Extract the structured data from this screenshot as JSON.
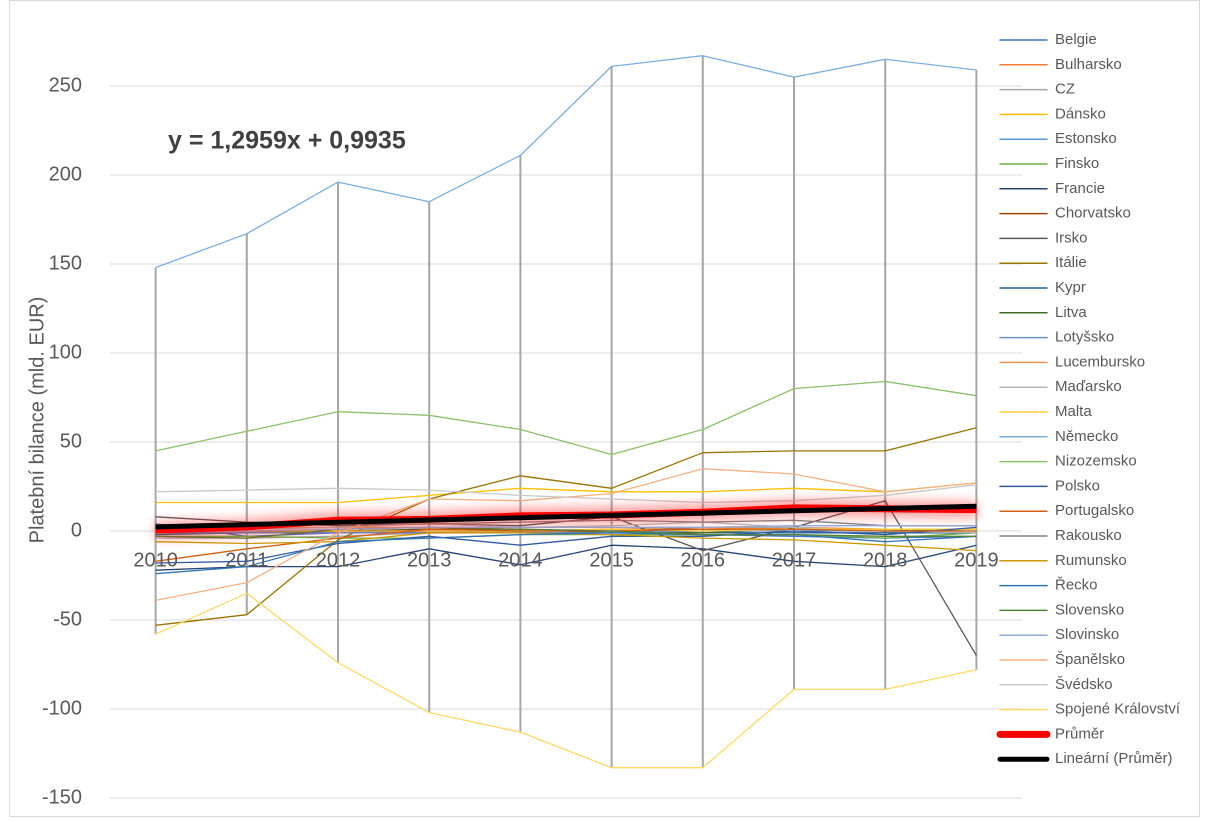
{
  "chart_data": {
    "type": "line",
    "y_label": "Platební bilance (mld. EUR)",
    "annotation": "y = 1,2959x + 0,9935",
    "categories": [
      "2010",
      "2011",
      "2012",
      "2013",
      "2014",
      "2015",
      "2016",
      "2017",
      "2018",
      "2019"
    ],
    "ylim": [
      -150,
      270
    ],
    "yticks": [
      -150,
      -100,
      -50,
      0,
      50,
      100,
      150,
      200,
      250
    ],
    "grid": true,
    "high_low_lines": true,
    "legend": "right",
    "series": [
      {
        "name": "Belgie",
        "color": "#4472c4",
        "values": [
          4,
          -3,
          -1,
          -1,
          -1,
          -1,
          -2,
          -3,
          -4,
          -3
        ]
      },
      {
        "name": "Bulharsko",
        "color": "#ed7d31",
        "values": [
          -1,
          0,
          -1,
          0,
          0,
          0,
          1,
          2,
          1,
          1
        ]
      },
      {
        "name": "CZ",
        "color": "#a5a5a5",
        "values": [
          -4,
          -4,
          -3,
          -1,
          0,
          0,
          2,
          2,
          0,
          -1
        ]
      },
      {
        "name": "Dánsko",
        "color": "#ffc000",
        "values": [
          16,
          16,
          16,
          20,
          24,
          22,
          22,
          24,
          22,
          27
        ]
      },
      {
        "name": "Estonsko",
        "color": "#5b9bd5",
        "values": [
          0,
          0,
          -1,
          0,
          0,
          0,
          0,
          1,
          1,
          1
        ]
      },
      {
        "name": "Finsko",
        "color": "#70ad47",
        "values": [
          -3,
          -3,
          -4,
          -4,
          -2,
          -2,
          -2,
          -2,
          -4,
          -1
        ]
      },
      {
        "name": "Francie",
        "color": "#264478",
        "values": [
          -22,
          -20,
          -20,
          -10,
          -19,
          -8,
          -10,
          -17,
          -20,
          -8
        ]
      },
      {
        "name": "Chorvatsko",
        "color": "#9e480e",
        "values": [
          -1,
          -1,
          0,
          0,
          0,
          1,
          1,
          1,
          1,
          1
        ]
      },
      {
        "name": "Irsko",
        "color": "#595959",
        "values": [
          8,
          5,
          3,
          4,
          3,
          8,
          -11,
          2,
          17,
          -70
        ]
      },
      {
        "name": "Itálie",
        "color": "#997300",
        "values": [
          -53,
          -47,
          -5,
          18,
          31,
          24,
          44,
          45,
          45,
          58
        ]
      },
      {
        "name": "Kypr",
        "color": "#255e91",
        "values": [
          -2,
          -1,
          -1,
          -1,
          -1,
          -1,
          -1,
          -1,
          -1,
          -1
        ]
      },
      {
        "name": "Litva",
        "color": "#43682b",
        "values": [
          -1,
          -1,
          0,
          1,
          1,
          -1,
          -1,
          1,
          0,
          1
        ]
      },
      {
        "name": "Lotyšsko",
        "color": "#698ed0",
        "values": [
          -1,
          -1,
          -1,
          -1,
          -1,
          -1,
          0,
          0,
          0,
          0
        ]
      },
      {
        "name": "Lucembursko",
        "color": "#f1975a",
        "values": [
          2,
          2,
          2,
          2,
          2,
          2,
          2,
          1,
          1,
          1
        ]
      },
      {
        "name": "Maďarsko",
        "color": "#b7b7b7",
        "values": [
          0,
          1,
          2,
          4,
          2,
          3,
          5,
          2,
          0,
          -1
        ]
      },
      {
        "name": "Malta",
        "color": "#ffcd33",
        "values": [
          0,
          0,
          0,
          0,
          0,
          1,
          0,
          1,
          1,
          1
        ]
      },
      {
        "name": "Německo",
        "color": "#7cafdd",
        "values": [
          148,
          167,
          196,
          185,
          211,
          261,
          267,
          255,
          265,
          259
        ]
      },
      {
        "name": "Nizozemsko",
        "color": "#8cc168",
        "values": [
          45,
          56,
          67,
          65,
          57,
          43,
          57,
          80,
          84,
          76
        ]
      },
      {
        "name": "Polsko",
        "color": "#335aa1",
        "values": [
          -18,
          -17,
          -7,
          -3,
          -8,
          -3,
          -3,
          0,
          -2,
          2
        ]
      },
      {
        "name": "Portugalsko",
        "color": "#d26012",
        "values": [
          -17,
          -10,
          -4,
          1,
          0,
          0,
          1,
          1,
          0,
          0
        ]
      },
      {
        "name": "Rakousko",
        "color": "#848484",
        "values": [
          3,
          2,
          4,
          4,
          5,
          6,
          5,
          6,
          3,
          3
        ]
      },
      {
        "name": "Rumunsko",
        "color": "#cc9a00",
        "values": [
          -6,
          -7,
          -6,
          -1,
          -1,
          -2,
          -4,
          -5,
          -8,
          -11
        ]
      },
      {
        "name": "Řecko",
        "color": "#2e75b6",
        "values": [
          -24,
          -20,
          -6,
          -4,
          -2,
          -1,
          -2,
          -2,
          -6,
          -3
        ]
      },
      {
        "name": "Slovensko",
        "color": "#548235",
        "values": [
          -3,
          -4,
          1,
          2,
          1,
          0,
          -2,
          -2,
          -3,
          -3
        ]
      },
      {
        "name": "Slovinsko",
        "color": "#8faadc",
        "values": [
          0,
          0,
          1,
          2,
          2,
          2,
          2,
          3,
          3,
          3
        ]
      },
      {
        "name": "Španělsko",
        "color": "#f4b183",
        "values": [
          -39,
          -29,
          -1,
          18,
          17,
          21,
          35,
          32,
          22,
          27
        ]
      },
      {
        "name": "Švédsko",
        "color": "#c9c9c9",
        "values": [
          22,
          23,
          24,
          23,
          20,
          18,
          16,
          17,
          20,
          26
        ]
      },
      {
        "name": "Spojené Království",
        "color": "#ffd966",
        "values": [
          -58,
          -35,
          -74,
          -102,
          -113,
          -133,
          -133,
          -89,
          -89,
          -78
        ]
      },
      {
        "name": "Průměr",
        "color": "#ff0000",
        "values": [
          0.5,
          2.3,
          6,
          6.5,
          8.5,
          9,
          10.5,
          13,
          12.5,
          12
        ]
      },
      {
        "name": "Lineární (Průměr)",
        "color": "#000000",
        "values": [
          2.29,
          3.59,
          4.88,
          6.18,
          7.47,
          8.77,
          10.06,
          11.36,
          12.66,
          13.95
        ]
      }
    ]
  }
}
